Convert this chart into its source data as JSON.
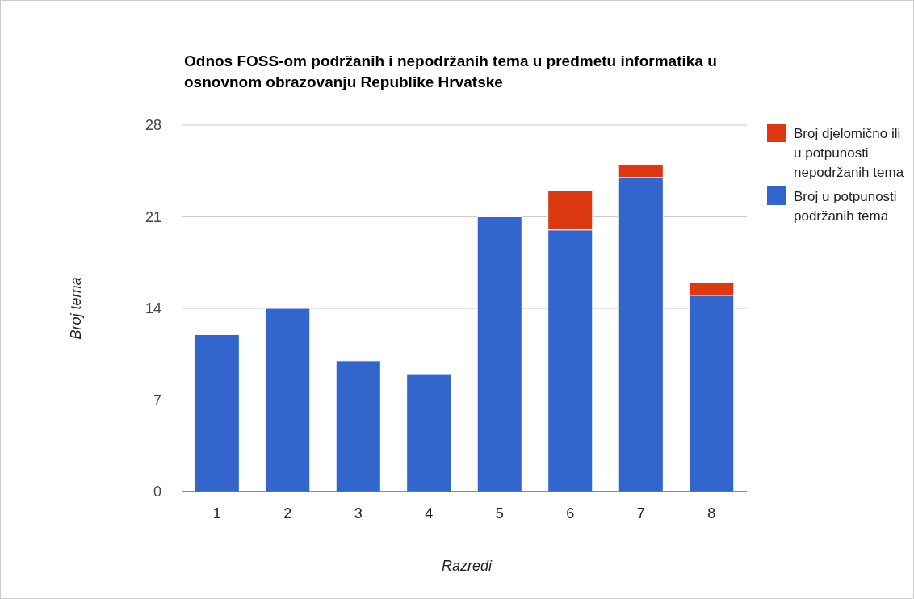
{
  "chart_data": {
    "type": "bar",
    "title": "Odnos FOSS-om podržanih i nepodržanih tema u predmetu informatika u osnovnom obrazovanju Republike Hrvatske",
    "xlabel": "Razredi",
    "ylabel": "Broj tema",
    "categories": [
      "1",
      "2",
      "3",
      "4",
      "5",
      "6",
      "7",
      "8"
    ],
    "series": [
      {
        "name": "Broj u potpunosti  podržanih tema",
        "color": "#3366cc",
        "values": [
          12,
          14,
          10,
          9,
          21,
          20,
          24,
          15
        ]
      },
      {
        "name": "Broj djelomično ili u potpunosti nepodržanih tema",
        "color": "#dc3912",
        "values": [
          0,
          0,
          0,
          0,
          0,
          3,
          1,
          1
        ]
      }
    ],
    "stacked": true,
    "ylim": [
      0,
      28
    ],
    "yticks": [
      0,
      7,
      14,
      21,
      28
    ],
    "grid": "y",
    "legend": "right"
  }
}
